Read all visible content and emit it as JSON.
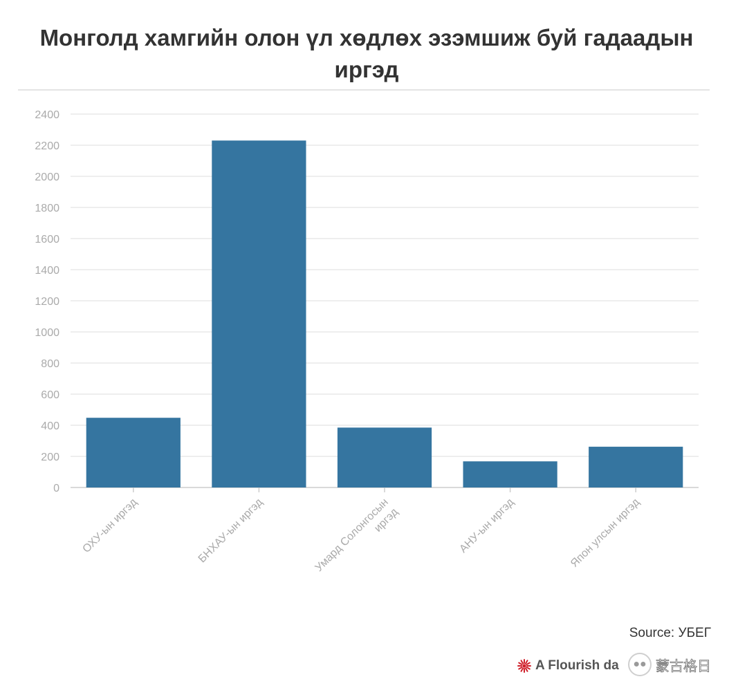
{
  "chart_data": {
    "type": "bar",
    "title": "Монголд хамгийн олон үл хөдлөх эзэмшиж буй гадаадын иргэд",
    "categories": [
      [
        "ОХУ-ын иргэд"
      ],
      [
        "БНХАУ-ын иргэд"
      ],
      [
        "Умард Солонгосын",
        "иргэд"
      ],
      [
        "АНУ-ын иргэд"
      ],
      [
        "Япон улсын иргэд"
      ]
    ],
    "values": [
      448,
      2230,
      385,
      168,
      262
    ],
    "ylim": [
      0,
      2400
    ],
    "yticks": [
      0,
      200,
      400,
      600,
      800,
      1000,
      1200,
      1400,
      1600,
      1800,
      2000,
      2200,
      2400
    ],
    "grid": true,
    "bar_color": "#2d6f9c"
  },
  "source_text": "Source: УБЕГ",
  "footer_text": "A Flourish da",
  "watermark_text": "蒙古格日",
  "watermark_icon": "chat-bubble-icon",
  "flourish_icon": "flourish-sunburst-icon",
  "colors": {
    "title": "#333333",
    "axis_text": "#aaaaaa",
    "grid": "#e9e9e9",
    "flourish_red": "#d0202b"
  }
}
